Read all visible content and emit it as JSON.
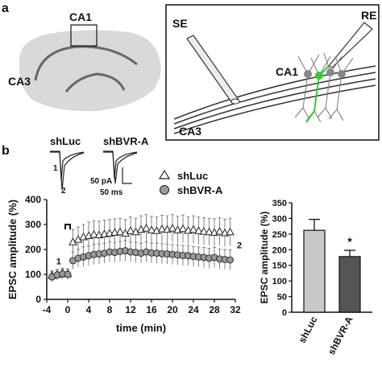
{
  "panel_a": {
    "label": "a",
    "brain": {
      "region1": "CA1",
      "region2": "CA3"
    },
    "inset": {
      "stim_electrode": "SE",
      "rec_electrode": "RE",
      "region1": "CA1",
      "region2": "CA3"
    }
  },
  "panel_b": {
    "label": "b",
    "traces": {
      "group1": "shLuc",
      "group2": "shBVR-A",
      "marker1": "1",
      "marker2": "2",
      "scale_y": "50 pA",
      "scale_x": "50 ms"
    },
    "legend": [
      {
        "name": "shLuc",
        "marker": "open-triangle"
      },
      {
        "name": "shBVR-A",
        "marker": "filled-circle"
      }
    ],
    "colors": {
      "shLuc_bar": "#c8c8c8",
      "shBVR_bar": "#555555",
      "brain": "#d9d9d9",
      "axon_green": "#33cc33"
    }
  },
  "chart_data": [
    {
      "type": "scatter",
      "xlabel": "time (min)",
      "ylabel": "EPSC amplitude (%)",
      "xlim": [
        -4,
        32
      ],
      "ylim": [
        0,
        400
      ],
      "xticks": [
        "-4",
        "0",
        "4",
        "8",
        "12",
        "16",
        "20",
        "24",
        "28",
        "32"
      ],
      "yticks": [
        "0",
        "100",
        "200",
        "300",
        "400"
      ],
      "annotations": {
        "marker1": "1",
        "marker2": "2"
      },
      "series": [
        {
          "name": "shLuc",
          "x": [
            -3,
            -2,
            -1,
            0,
            1,
            2,
            3,
            4,
            5,
            6,
            7,
            8,
            9,
            10,
            11,
            12,
            13,
            14,
            15,
            16,
            17,
            18,
            19,
            20,
            21,
            22,
            23,
            24,
            25,
            26,
            27,
            28,
            29,
            30,
            31
          ],
          "y": [
            95,
            100,
            105,
            102,
            230,
            240,
            250,
            255,
            260,
            258,
            262,
            265,
            268,
            270,
            265,
            275,
            270,
            280,
            285,
            278,
            275,
            282,
            280,
            285,
            278,
            283,
            276,
            280,
            275,
            272,
            270,
            268,
            272,
            266,
            270
          ],
          "err": [
            20,
            20,
            20,
            20,
            50,
            50,
            50,
            55,
            55,
            55,
            55,
            55,
            55,
            55,
            55,
            55,
            55,
            55,
            55,
            55,
            55,
            55,
            55,
            55,
            55,
            55,
            55,
            55,
            55,
            55,
            55,
            55,
            55,
            55,
            55
          ]
        },
        {
          "name": "shBVR-A",
          "x": [
            -3,
            -2,
            -1,
            0,
            1,
            2,
            3,
            4,
            5,
            6,
            7,
            8,
            9,
            10,
            11,
            12,
            13,
            14,
            15,
            16,
            17,
            18,
            19,
            20,
            21,
            22,
            23,
            24,
            25,
            26,
            27,
            28,
            29,
            30,
            31
          ],
          "y": [
            90,
            98,
            102,
            100,
            155,
            165,
            170,
            175,
            180,
            182,
            185,
            190,
            188,
            192,
            195,
            190,
            188,
            185,
            190,
            186,
            185,
            183,
            182,
            180,
            178,
            176,
            175,
            172,
            170,
            168,
            165,
            168,
            162,
            160,
            158
          ],
          "err": [
            20,
            20,
            20,
            20,
            35,
            35,
            40,
            40,
            40,
            40,
            40,
            40,
            40,
            40,
            40,
            40,
            40,
            40,
            40,
            40,
            40,
            40,
            40,
            40,
            40,
            40,
            40,
            40,
            40,
            40,
            40,
            40,
            40,
            40,
            40
          ]
        }
      ]
    },
    {
      "type": "bar",
      "ylabel": "EPSC amplitude (%)",
      "ylim": [
        0,
        350
      ],
      "yticks": [
        "0",
        "50",
        "100",
        "150",
        "200",
        "250",
        "300",
        "350"
      ],
      "categories": [
        "shLuc",
        "shBVR-A"
      ],
      "values": [
        262,
        178
      ],
      "errors": [
        35,
        20
      ],
      "significance": "*"
    }
  ]
}
